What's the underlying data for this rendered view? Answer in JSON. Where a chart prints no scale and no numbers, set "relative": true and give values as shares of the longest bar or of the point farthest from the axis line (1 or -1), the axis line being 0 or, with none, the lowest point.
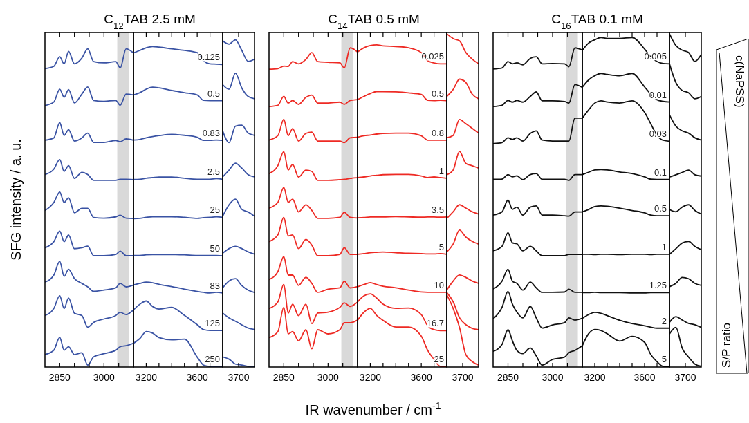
{
  "chart_data": [
    {
      "type": "line",
      "title": "C$_{12}$TAB 2.5 mM",
      "ylabel": "SFG intensity / a. u.",
      "relative": true,
      "tick_labels": "x",
      "xlim": [
        2800,
        3100
      ],
      "xticks": [
        2850,
        {
          "value": 2900,
          "label": null
        },
        {
          "value": 2950,
          "label": null
        },
        3000,
        {
          "value": 3050,
          "label": null
        }
      ],
      "bands": [
        {
          "axis": "x",
          "from": 3045,
          "to": 3085,
          "color": "#d9d9d9"
        }
      ],
      "x": [
        2800,
        2830,
        2850,
        2865,
        2880,
        2900,
        2925,
        2945,
        2965,
        3000,
        3040,
        3055,
        3075,
        3100
      ],
      "series": [
        {
          "color": "#3a53a4",
          "values": [
            0.938,
            0.945,
            0.975,
            0.953,
            0.992,
            0.953,
            0.971,
            1.0,
            0.96,
            0.956,
            0.96,
            0.94,
            1.0,
            0.987
          ]
        },
        {
          "color": "#3a53a4",
          "values": [
            0.822,
            0.833,
            0.873,
            0.848,
            0.872,
            0.83,
            0.858,
            0.88,
            0.838,
            0.835,
            0.838,
            0.823,
            0.858,
            0.855
          ]
        },
        {
          "color": "#3a53a4",
          "values": [
            0.713,
            0.72,
            0.768,
            0.728,
            0.746,
            0.71,
            0.72,
            0.735,
            0.706,
            0.706,
            0.712,
            0.708,
            0.717,
            0.713
          ]
        },
        {
          "color": "#3a53a4",
          "values": [
            0.605,
            0.622,
            0.652,
            0.615,
            0.633,
            0.593,
            0.612,
            0.605,
            0.587,
            0.587,
            0.587,
            0.59,
            0.59,
            0.589
          ]
        },
        {
          "color": "#3a53a4",
          "values": [
            0.492,
            0.517,
            0.55,
            0.517,
            0.532,
            0.485,
            0.499,
            0.499,
            0.47,
            0.468,
            0.472,
            0.477,
            0.468,
            0.467
          ]
        },
        {
          "color": "#3a53a4",
          "values": [
            0.375,
            0.394,
            0.427,
            0.394,
            0.415,
            0.372,
            0.375,
            0.38,
            0.35,
            0.35,
            0.354,
            0.364,
            0.35,
            0.35
          ]
        },
        {
          "color": "#3a53a4",
          "values": [
            0.267,
            0.289,
            0.332,
            0.285,
            0.307,
            0.278,
            0.263,
            0.252,
            0.238,
            0.242,
            0.249,
            0.263,
            0.252,
            0.258
          ]
        },
        {
          "color": "#3a53a4",
          "values": [
            0.162,
            0.184,
            0.224,
            0.184,
            0.217,
            0.169,
            0.162,
            0.125,
            0.14,
            0.151,
            0.162,
            0.172,
            0.165,
            0.18
          ]
        },
        {
          "color": "#3a53a4",
          "values": [
            0.039,
            0.053,
            0.093,
            0.053,
            0.064,
            0.039,
            0.045,
            0.006,
            0.032,
            0.042,
            0.053,
            0.064,
            0.067,
            0.075
          ]
        }
      ]
    },
    {
      "type": "line",
      "relative": true,
      "tick_labels": "x",
      "xlim": [
        3100,
        3800
      ],
      "xticks": [
        3200,
        {
          "value": 3300,
          "label": null
        },
        {
          "value": 3400,
          "label": null
        },
        {
          "value": 3500,
          "label": null
        },
        3600,
        {
          "value": 3700,
          "label": null
        }
      ],
      "x": [
        3100,
        3150,
        3200,
        3250,
        3300,
        3400,
        3500,
        3600,
        3650,
        3700,
        3750,
        3800
      ],
      "series": [
        {
          "name": "0.125",
          "color": "#3a53a4",
          "values": [
            0.98,
            0.988,
            0.996,
            1.0,
            0.998,
            0.993,
            0.988,
            0.981,
            0.956,
            0.946,
            0.945,
            0.944
          ]
        },
        {
          "name": "0.5",
          "color": "#3a53a4",
          "values": [
            0.849,
            0.856,
            0.867,
            0.873,
            0.871,
            0.863,
            0.856,
            0.849,
            0.832,
            0.831,
            0.831,
            0.831
          ]
        },
        {
          "name": "0.83",
          "color": "#3a53a4",
          "values": [
            0.708,
            0.71,
            0.715,
            0.719,
            0.722,
            0.726,
            0.723,
            0.717,
            0.707,
            0.707,
            0.708,
            0.707
          ]
        },
        {
          "name": "2.5",
          "color": "#3a53a4",
          "values": [
            0.585,
            0.586,
            0.589,
            0.591,
            0.593,
            0.593,
            0.589,
            0.586,
            0.586,
            0.586,
            0.588,
            0.586
          ]
        },
        {
          "name": "25",
          "color": "#3a53a4",
          "values": [
            0.463,
            0.464,
            0.467,
            0.469,
            0.469,
            0.469,
            0.467,
            0.464,
            0.466,
            0.467,
            0.469,
            0.467
          ]
        },
        {
          "name": "50",
          "color": "#3a53a4",
          "values": [
            0.348,
            0.348,
            0.35,
            0.351,
            0.351,
            0.351,
            0.35,
            0.348,
            0.348,
            0.348,
            0.348,
            0.347
          ]
        },
        {
          "name": "83",
          "color": "#3a53a4",
          "values": [
            0.256,
            0.261,
            0.265,
            0.263,
            0.258,
            0.251,
            0.243,
            0.236,
            0.233,
            0.231,
            0.233,
            0.231
          ]
        },
        {
          "name": "125",
          "color": "#3a53a4",
          "values": [
            0.178,
            0.196,
            0.206,
            0.189,
            0.181,
            0.186,
            0.161,
            0.132,
            0.117,
            0.114,
            0.114,
            0.114
          ]
        },
        {
          "name": "250",
          "color": "#3a53a4",
          "values": [
            0.074,
            0.089,
            0.111,
            0.106,
            0.092,
            0.085,
            0.087,
            0.031,
            0.006,
            0.002,
            0.002,
            0.002
          ]
        }
      ]
    },
    {
      "type": "line",
      "relative": true,
      "tick_labels": "x",
      "annotations": [
        "3700"
      ],
      "categories": [
        null,
        null,
        null,
        null,
        null,
        null
      ],
      "series": [
        {
          "color": "#3a53a4",
          "values": [
            0.997,
            0.987,
            1.0,
            0.968,
            0.934,
            0.941
          ]
        },
        {
          "color": "#3a53a4",
          "values": [
            0.863,
            0.849,
            0.898,
            0.853,
            0.827,
            0.82
          ]
        },
        {
          "color": "#3a53a4",
          "values": [
            0.722,
            0.686,
            0.736,
            0.739,
            0.715,
            0.708
          ]
        },
        {
          "color": "#3a53a4",
          "values": [
            0.581,
            0.602,
            0.623,
            0.608,
            0.588,
            0.581
          ]
        },
        {
          "color": "#3a53a4",
          "values": [
            0.461,
            0.496,
            0.513,
            0.482,
            0.474,
            0.461
          ]
        },
        {
          "color": "#3a53a4",
          "values": [
            0.348,
            0.362,
            0.369,
            0.362,
            0.352,
            0.345
          ]
        },
        {
          "color": "#3a53a4",
          "values": [
            0.242,
            0.263,
            0.27,
            0.249,
            0.235,
            0.228
          ]
        },
        {
          "color": "#3a53a4",
          "values": [
            0.165,
            0.15,
            0.14,
            0.129,
            0.119,
            0.115
          ]
        },
        {
          "color": "#3a53a4",
          "values": [
            0.031,
            0.024,
            0.009,
            0.006,
            0.002,
            0.002
          ]
        }
      ]
    },
    {
      "type": "line",
      "title": "C$_{14}$TAB 0.5 mM",
      "relative": true,
      "tick_labels": "x",
      "xlim": [
        2800,
        3100
      ],
      "xticks": [
        2850,
        {
          "value": 2900,
          "label": null
        },
        {
          "value": 2950,
          "label": null
        },
        3000,
        {
          "value": 3050,
          "label": null
        }
      ],
      "bands": [
        {
          "axis": "x",
          "from": 3045,
          "to": 3085,
          "color": "#d9d9d9"
        }
      ],
      "x": [
        2800,
        2830,
        2850,
        2865,
        2880,
        2900,
        2925,
        2945,
        2965,
        3000,
        3040,
        3055,
        3075,
        3100
      ],
      "series": [
        {
          "color": "#ee2a24",
          "values": [
            0.933,
            0.935,
            0.943,
            0.942,
            0.957,
            0.95,
            0.964,
            0.985,
            0.957,
            0.955,
            0.953,
            0.937,
            1.0,
            0.987
          ]
        },
        {
          "color": "#ee2a24",
          "values": [
            0.816,
            0.82,
            0.848,
            0.827,
            0.835,
            0.823,
            0.845,
            0.852,
            0.827,
            0.827,
            0.83,
            0.823,
            0.835,
            0.838
          ]
        },
        {
          "color": "#ee2a24",
          "values": [
            0.711,
            0.725,
            0.776,
            0.725,
            0.747,
            0.708,
            0.732,
            0.736,
            0.708,
            0.708,
            0.708,
            0.703,
            0.718,
            0.72
          ]
        },
        {
          "color": "#ee2a24",
          "values": [
            0.606,
            0.631,
            0.675,
            0.617,
            0.635,
            0.595,
            0.617,
            0.613,
            0.585,
            0.585,
            0.587,
            0.588,
            0.591,
            0.593
          ]
        },
        {
          "color": "#ee2a24",
          "values": [
            0.498,
            0.516,
            0.563,
            0.516,
            0.526,
            0.486,
            0.508,
            0.491,
            0.466,
            0.466,
            0.469,
            0.485,
            0.469,
            0.467
          ]
        },
        {
          "color": "#ee2a24",
          "values": [
            0.393,
            0.414,
            0.469,
            0.411,
            0.414,
            0.371,
            0.4,
            0.382,
            0.349,
            0.349,
            0.353,
            0.374,
            0.353,
            0.353
          ]
        },
        {
          "color": "#ee2a24",
          "values": [
            0.274,
            0.299,
            0.346,
            0.288,
            0.288,
            0.256,
            0.281,
            0.262,
            0.234,
            0.244,
            0.248,
            0.269,
            0.248,
            0.252
          ]
        },
        {
          "color": "#ee2a24",
          "values": [
            0.183,
            0.204,
            0.259,
            0.169,
            0.197,
            0.161,
            0.197,
            0.136,
            0.169,
            0.172,
            0.187,
            0.201,
            0.19,
            0.204
          ]
        },
        {
          "color": "#ee2a24",
          "values": [
            0.092,
            0.111,
            0.187,
            0.104,
            0.111,
            0.082,
            0.117,
            0.057,
            0.117,
            0.104,
            0.117,
            0.139,
            0.139,
            0.147
          ]
        }
      ]
    },
    {
      "type": "line",
      "xlabel": "IR wavenumber / cm$^{-1}$",
      "relative": true,
      "tick_labels": "x",
      "xlim": [
        3100,
        3800
      ],
      "xticks": [
        3200,
        {
          "value": 3300,
          "label": null
        },
        {
          "value": 3400,
          "label": null
        },
        {
          "value": 3500,
          "label": null
        },
        3600,
        {
          "value": 3700,
          "label": null
        }
      ],
      "x": [
        3100,
        3150,
        3200,
        3250,
        3300,
        3400,
        3500,
        3600,
        3650,
        3700,
        3750,
        3800
      ],
      "series": [
        {
          "name": "0.025",
          "color": "#ee2a24",
          "values": [
            0.978,
            0.991,
            0.998,
            1.0,
            0.997,
            0.995,
            0.991,
            0.976,
            0.951,
            0.944,
            0.941,
            0.941
          ]
        },
        {
          "name": "0.5",
          "color": "#ee2a24",
          "values": [
            0.83,
            0.84,
            0.849,
            0.855,
            0.855,
            0.854,
            0.851,
            0.846,
            0.828,
            0.827,
            0.828,
            0.827
          ]
        },
        {
          "name": "0.8",
          "color": "#ee2a24",
          "values": [
            0.713,
            0.718,
            0.72,
            0.723,
            0.725,
            0.726,
            0.726,
            0.718,
            0.704,
            0.704,
            0.704,
            0.704
          ]
        },
        {
          "name": "1",
          "color": "#ee2a24",
          "values": [
            0.588,
            0.59,
            0.593,
            0.595,
            0.597,
            0.598,
            0.598,
            0.593,
            0.588,
            0.59,
            0.588,
            0.586
          ]
        },
        {
          "name": "3.5",
          "color": "#ee2a24",
          "values": [
            0.463,
            0.464,
            0.466,
            0.466,
            0.466,
            0.467,
            0.466,
            0.465,
            0.466,
            0.466,
            0.465,
            0.466
          ]
        },
        {
          "name": "5",
          "color": "#ee2a24",
          "values": [
            0.35,
            0.352,
            0.355,
            0.356,
            0.357,
            0.355,
            0.353,
            0.352,
            0.351,
            0.351,
            0.352,
            0.35
          ]
        },
        {
          "name": "10",
          "color": "#ee2a24",
          "values": [
            0.249,
            0.256,
            0.262,
            0.256,
            0.251,
            0.246,
            0.239,
            0.233,
            0.232,
            0.232,
            0.232,
            0.232
          ]
        },
        {
          "name": "16.7",
          "color": "#ee2a24",
          "values": [
            0.202,
            0.221,
            0.227,
            0.214,
            0.195,
            0.182,
            0.183,
            0.163,
            0.128,
            0.116,
            0.113,
            0.113
          ]
        },
        {
          "name": "25",
          "color": "#ee2a24",
          "values": [
            0.145,
            0.17,
            0.182,
            0.16,
            0.145,
            0.124,
            0.124,
            0.096,
            0.052,
            0.024,
            0.002,
            0.002
          ]
        }
      ]
    },
    {
      "type": "line",
      "relative": true,
      "tick_labels": "x",
      "annotations": [
        "3700"
      ],
      "categories": [
        null,
        null,
        null,
        null,
        null,
        null
      ],
      "series": [
        {
          "color": "#ee2a24",
          "values": [
            1.0,
            0.986,
            0.979,
            0.944,
            0.924,
            0.91
          ]
        },
        {
          "color": "#ee2a24",
          "values": [
            0.812,
            0.833,
            0.864,
            0.854,
            0.819,
            0.805
          ]
        },
        {
          "color": "#ee2a24",
          "values": [
            0.688,
            0.695,
            0.743,
            0.73,
            0.716,
            0.702
          ]
        },
        {
          "color": "#ee2a24",
          "values": [
            0.577,
            0.591,
            0.647,
            0.611,
            0.604,
            0.597
          ]
        },
        {
          "color": "#ee2a24",
          "values": [
            0.446,
            0.466,
            0.487,
            0.477,
            0.466,
            0.459
          ]
        },
        {
          "color": "#ee2a24",
          "values": [
            0.345,
            0.369,
            0.411,
            0.39,
            0.377,
            0.369
          ]
        },
        {
          "color": "#ee2a24",
          "values": [
            0.231,
            0.258,
            0.276,
            0.269,
            0.258,
            0.251
          ]
        },
        {
          "color": "#ee2a24",
          "values": [
            0.224,
            0.196,
            0.148,
            0.127,
            0.116,
            0.112
          ]
        },
        {
          "color": "#ee2a24",
          "values": [
            0.217,
            0.176,
            0.119,
            0.037,
            0.016,
            0.006
          ]
        }
      ]
    },
    {
      "type": "line",
      "title": "C$_{16}$TAB 0.1 mM",
      "relative": true,
      "tick_labels": "x",
      "xlim": [
        2800,
        3100
      ],
      "xticks": [
        2850,
        {
          "value": 2900,
          "label": null
        },
        {
          "value": 2950,
          "label": null
        },
        3000,
        {
          "value": 3050,
          "label": null
        }
      ],
      "bands": [
        {
          "axis": "x",
          "from": 3045,
          "to": 3085,
          "color": "#d9d9d9"
        }
      ],
      "x": [
        2800,
        2830,
        2850,
        2865,
        2880,
        2900,
        2925,
        2945,
        2965,
        3000,
        3040,
        3055,
        3075,
        3100
      ],
      "series": [
        {
          "color": "#111111",
          "values": [
            0.934,
            0.937,
            0.957,
            0.95,
            0.953,
            0.947,
            0.967,
            0.972,
            0.95,
            0.951,
            0.95,
            0.941,
            1.0,
            0.993
          ]
        },
        {
          "color": "#111111",
          "values": [
            0.816,
            0.82,
            0.835,
            0.83,
            0.835,
            0.83,
            0.848,
            0.862,
            0.834,
            0.834,
            0.832,
            0.827,
            0.885,
            0.876
          ]
        },
        {
          "color": "#111111",
          "values": [
            0.7,
            0.703,
            0.718,
            0.713,
            0.718,
            0.708,
            0.732,
            0.74,
            0.711,
            0.708,
            0.708,
            0.708,
            0.78,
            0.78
          ]
        },
        {
          "color": "#111111",
          "values": [
            0.588,
            0.589,
            0.603,
            0.596,
            0.599,
            0.587,
            0.603,
            0.606,
            0.588,
            0.588,
            0.588,
            0.585,
            0.603,
            0.603
          ]
        },
        {
          "color": "#111111",
          "values": [
            0.476,
            0.486,
            0.523,
            0.494,
            0.501,
            0.476,
            0.501,
            0.505,
            0.476,
            0.476,
            0.474,
            0.473,
            0.486,
            0.486
          ]
        },
        {
          "color": "#111111",
          "values": [
            0.364,
            0.378,
            0.421,
            0.389,
            0.386,
            0.364,
            0.378,
            0.364,
            0.349,
            0.349,
            0.349,
            0.353,
            0.353,
            0.353
          ]
        },
        {
          "color": "#111111",
          "values": [
            0.244,
            0.269,
            0.306,
            0.269,
            0.262,
            0.241,
            0.266,
            0.248,
            0.234,
            0.234,
            0.235,
            0.244,
            0.234,
            0.234
          ]
        },
        {
          "color": "#111111",
          "values": [
            0.151,
            0.187,
            0.237,
            0.197,
            0.172,
            0.154,
            0.19,
            0.154,
            0.122,
            0.132,
            0.139,
            0.154,
            0.147,
            0.153
          ]
        },
        {
          "color": "#111111",
          "values": [
            0.049,
            0.071,
            0.117,
            0.082,
            0.052,
            0.042,
            0.06,
            0.035,
            0.006,
            0.024,
            0.031,
            0.045,
            0.052,
            0.067
          ]
        }
      ]
    },
    {
      "type": "line",
      "relative": true,
      "tick_labels": "x",
      "xlim": [
        3100,
        3800
      ],
      "xticks": [
        3200,
        {
          "value": 3300,
          "label": null
        },
        {
          "value": 3400,
          "label": null
        },
        {
          "value": 3500,
          "label": null
        },
        3600,
        {
          "value": 3700,
          "label": null
        }
      ],
      "x": [
        3100,
        3150,
        3200,
        3250,
        3300,
        3400,
        3500,
        3600,
        3650,
        3700,
        3750,
        3800
      ],
      "series": [
        {
          "name": "0.005",
          "color": "#111111",
          "values": [
            0.961,
            0.983,
            0.993,
            1.0,
            0.997,
            0.997,
            1.0,
            0.965,
            0.941,
            0.927,
            0.921,
            0.92
          ]
        },
        {
          "name": "0.01",
          "color": "#111111",
          "values": [
            0.849,
            0.871,
            0.884,
            0.891,
            0.888,
            0.884,
            0.891,
            0.85,
            0.828,
            0.811,
            0.806,
            0.804
          ]
        },
        {
          "name": "0.03",
          "color": "#111111",
          "values": [
            0.755,
            0.78,
            0.801,
            0.808,
            0.804,
            0.801,
            0.808,
            0.773,
            0.738,
            0.703,
            0.688,
            0.685
          ]
        },
        {
          "name": "0.1",
          "color": "#111111",
          "values": [
            0.584,
            0.591,
            0.598,
            0.599,
            0.598,
            0.592,
            0.587,
            0.577,
            0.57,
            0.569,
            0.569,
            0.569
          ]
        },
        {
          "name": "0.5",
          "color": "#111111",
          "values": [
            0.471,
            0.478,
            0.487,
            0.489,
            0.488,
            0.482,
            0.475,
            0.468,
            0.461,
            0.459,
            0.459,
            0.459
          ]
        },
        {
          "name": "1",
          "color": "#111111",
          "values": [
            0.342,
            0.342,
            0.341,
            0.342,
            0.342,
            0.341,
            0.342,
            0.342,
            0.341,
            0.342,
            0.342,
            0.342
          ]
        },
        {
          "name": "1.25",
          "color": "#111111",
          "values": [
            0.226,
            0.226,
            0.227,
            0.226,
            0.226,
            0.226,
            0.225,
            0.225,
            0.226,
            0.226,
            0.226,
            0.226
          ]
        },
        {
          "name": "2",
          "color": "#111111",
          "values": [
            0.148,
            0.159,
            0.166,
            0.163,
            0.156,
            0.142,
            0.132,
            0.125,
            0.121,
            0.118,
            0.118,
            0.118
          ]
        },
        {
          "name": "5",
          "color": "#111111",
          "values": [
            0.065,
            0.101,
            0.114,
            0.111,
            0.101,
            0.079,
            0.093,
            0.075,
            0.038,
            0.016,
            0.002,
            0.002
          ]
        }
      ]
    },
    {
      "type": "line",
      "relative": true,
      "tick_labels": "x",
      "annotations": [
        "3700",
        "S/P ratio",
        "c(NaPSS)"
      ],
      "categories": [
        null,
        null,
        null,
        null,
        null,
        null
      ],
      "series": [
        {
          "color": "#111111",
          "values": [
            1.0,
            0.965,
            0.951,
            0.944,
            0.917,
            0.938
          ]
        },
        {
          "color": "#111111",
          "values": [
            0.91,
            0.854,
            0.83,
            0.823,
            0.805,
            0.812
          ]
        },
        {
          "color": "#111111",
          "values": [
            0.757,
            0.723,
            0.709,
            0.702,
            0.688,
            0.681
          ]
        },
        {
          "color": "#111111",
          "values": [
            0.57,
            0.577,
            0.584,
            0.591,
            0.577,
            0.573
          ]
        },
        {
          "color": "#111111",
          "values": [
            0.473,
            0.466,
            0.48,
            0.487,
            0.47,
            0.459
          ]
        },
        {
          "color": "#111111",
          "values": [
            0.338,
            0.355,
            0.372,
            0.377,
            0.362,
            0.352
          ]
        },
        {
          "color": "#111111",
          "values": [
            0.241,
            0.251,
            0.269,
            0.265,
            0.251,
            0.245
          ]
        },
        {
          "color": "#111111",
          "values": [
            0.134,
            0.151,
            0.141,
            0.131,
            0.127,
            0.119
          ]
        },
        {
          "color": "#111111",
          "values": [
            0.099,
            0.119,
            0.057,
            0.03,
            0.009,
            0.002
          ]
        }
      ]
    }
  ]
}
